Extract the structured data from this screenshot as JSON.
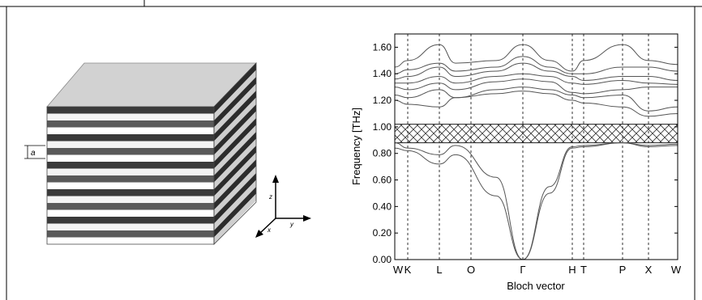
{
  "left_panel": {
    "layer_period_label": "a",
    "axes": {
      "z": "z",
      "y": "y",
      "x": "x"
    }
  },
  "chart_data": {
    "type": "line",
    "title": "",
    "xlabel": "Bloch vector",
    "ylabel": "Frequency [THz]",
    "ylim": [
      0.0,
      1.7
    ],
    "y_ticks": [
      "0.00",
      "0.20",
      "0.40",
      "0.60",
      "0.80",
      "1.00",
      "1.20",
      "1.40",
      "1.60"
    ],
    "symmetry_points": [
      "W",
      "K",
      "L",
      "O",
      "Γ",
      "H",
      "T",
      "P",
      "X",
      "W"
    ],
    "band_gap": {
      "from": 0.88,
      "to": 1.02
    },
    "series": [
      {
        "values": [
          0.84,
          0.82,
          0.72,
          0.79,
          0.48,
          0.0,
          0.5,
          0.84,
          0.85,
          0.88,
          0.85,
          0.86
        ]
      },
      {
        "values": [
          0.88,
          0.84,
          0.79,
          0.86,
          0.62,
          0.0,
          0.55,
          0.85,
          0.86,
          0.88,
          0.86,
          0.87
        ]
      },
      {
        "values": [
          1.2,
          1.17,
          1.15,
          1.22,
          1.25,
          1.27,
          1.25,
          1.2,
          1.18,
          1.15,
          1.08,
          1.1
        ]
      },
      {
        "values": [
          1.24,
          1.22,
          1.28,
          1.22,
          1.28,
          1.3,
          1.28,
          1.24,
          1.22,
          1.24,
          1.12,
          1.15
        ]
      },
      {
        "values": [
          1.3,
          1.28,
          1.33,
          1.28,
          1.34,
          1.36,
          1.34,
          1.26,
          1.25,
          1.28,
          1.3,
          1.3
        ]
      },
      {
        "values": [
          1.33,
          1.33,
          1.38,
          1.33,
          1.38,
          1.4,
          1.38,
          1.33,
          1.32,
          1.35,
          1.33,
          1.32
        ]
      },
      {
        "values": [
          1.36,
          1.38,
          1.45,
          1.38,
          1.42,
          1.48,
          1.42,
          1.38,
          1.35,
          1.38,
          1.38,
          1.35
        ]
      },
      {
        "values": [
          1.4,
          1.43,
          1.48,
          1.42,
          1.45,
          1.53,
          1.45,
          1.4,
          1.4,
          1.45,
          1.45,
          1.42
        ]
      },
      {
        "values": [
          1.45,
          1.5,
          1.62,
          1.48,
          1.5,
          1.62,
          1.5,
          1.42,
          1.5,
          1.62,
          1.5,
          1.47
        ]
      }
    ]
  }
}
